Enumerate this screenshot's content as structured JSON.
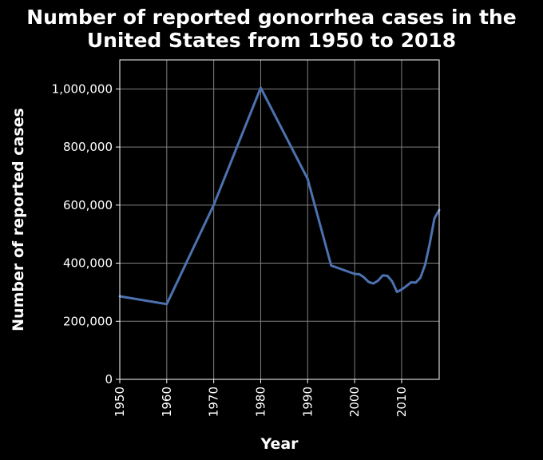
{
  "chart_data": {
    "type": "line",
    "title_lines": [
      "Number of reported gonorrhea cases in the",
      "United States from 1950 to 2018"
    ],
    "xlabel": "Year",
    "ylabel": "Number of reported cases",
    "xlim": [
      1950,
      2018
    ],
    "ylim": [
      0,
      1100000
    ],
    "xticks": [
      1950,
      1960,
      1970,
      1980,
      1990,
      2000,
      2010
    ],
    "xtick_labels": [
      "1950",
      "1960",
      "1970",
      "1980",
      "1990",
      "2000",
      "2010"
    ],
    "yticks": [
      0,
      200000,
      400000,
      600000,
      800000,
      1000000
    ],
    "ytick_labels": [
      "0",
      "200,000",
      "400,000",
      "600,000",
      "800,000",
      "1,000,000"
    ],
    "grid": true,
    "line_color": "#4c72b0",
    "grid_color": "#808080",
    "background": "#000000",
    "series": [
      {
        "x": [
          1950,
          1960,
          1970,
          1980,
          1990,
          1995,
          2000,
          2001,
          2002,
          2003,
          2004,
          2005,
          2006,
          2007,
          2008,
          2009,
          2010,
          2011,
          2012,
          2013,
          2014,
          2015,
          2016,
          2017,
          2018
        ],
        "y": [
          286000,
          259000,
          600000,
          1004000,
          690000,
          392000,
          363000,
          362000,
          351000,
          335000,
          330000,
          340000,
          358000,
          356000,
          337000,
          301000,
          309000,
          321000,
          334000,
          333000,
          350000,
          395000,
          468000,
          555000,
          583000
        ]
      }
    ]
  }
}
